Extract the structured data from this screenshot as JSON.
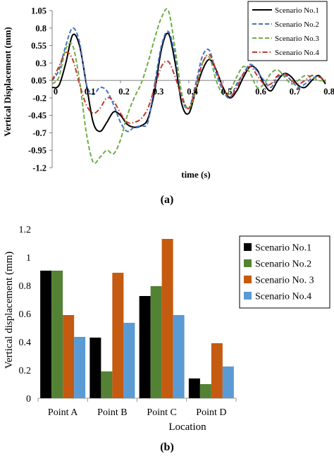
{
  "chart_data": [
    {
      "type": "line",
      "xlabel": "time (s)",
      "ylabel": "Vertical Displacement (mm)",
      "xlim": [
        0,
        0.8
      ],
      "ylim": [
        -1.2,
        1.05
      ],
      "x_ticks": [
        "0",
        "0.1",
        "0.2",
        "0.3",
        "0.4",
        "0.5",
        "0.6",
        "0.7",
        "0.8"
      ],
      "y_ticks": [
        "1.05",
        "0.8",
        "0.55",
        "0.3",
        "0.05",
        "-0.2",
        "-0.45",
        "-0.7",
        "-0.95",
        "-1.2"
      ],
      "grid": false,
      "legend_position": "top-right",
      "series": [
        {
          "name": "Scenario No.1",
          "color": "#000000",
          "dash": "solid",
          "x": [
            0,
            0.02,
            0.04,
            0.06,
            0.08,
            0.1,
            0.12,
            0.14,
            0.16,
            0.18,
            0.2,
            0.22,
            0.24,
            0.26,
            0.28,
            0.3,
            0.32,
            0.34,
            0.36,
            0.38,
            0.4,
            0.42,
            0.44,
            0.46,
            0.48,
            0.5,
            0.52,
            0.54,
            0.56,
            0.58,
            0.6,
            0.62,
            0.64,
            0.66,
            0.68,
            0.7,
            0.72,
            0.74,
            0.76,
            0.78,
            0.8
          ],
          "y": [
            -0.05,
            -0.02,
            0.3,
            0.7,
            0.55,
            0.0,
            -0.55,
            -0.68,
            -0.55,
            -0.4,
            -0.45,
            -0.58,
            -0.62,
            -0.6,
            -0.5,
            -0.1,
            0.5,
            0.72,
            0.3,
            -0.3,
            -0.42,
            -0.1,
            0.2,
            0.35,
            0.2,
            -0.05,
            -0.2,
            -0.1,
            0.1,
            0.25,
            0.2,
            0.0,
            -0.1,
            0.05,
            0.15,
            0.1,
            -0.02,
            -0.05,
            0.05,
            0.12,
            0.0
          ]
        },
        {
          "name": "Scenario No.2",
          "color": "#4472c4",
          "dash": "dashed",
          "x": [
            0,
            0.02,
            0.04,
            0.06,
            0.08,
            0.1,
            0.12,
            0.14,
            0.16,
            0.18,
            0.2,
            0.22,
            0.24,
            0.26,
            0.28,
            0.3,
            0.32,
            0.34,
            0.36,
            0.38,
            0.4,
            0.42,
            0.44,
            0.46,
            0.48,
            0.5,
            0.52,
            0.54,
            0.56,
            0.58,
            0.6,
            0.62,
            0.64,
            0.66,
            0.68,
            0.7,
            0.72,
            0.74,
            0.76,
            0.78,
            0.8
          ],
          "y": [
            0.05,
            0.2,
            0.55,
            0.8,
            0.6,
            0.0,
            -0.15,
            -0.05,
            -0.1,
            -0.3,
            -0.55,
            -0.68,
            -0.62,
            -0.6,
            -0.55,
            0.0,
            0.55,
            0.75,
            0.4,
            -0.2,
            -0.35,
            0.0,
            0.4,
            0.48,
            0.15,
            -0.1,
            -0.2,
            0.0,
            0.15,
            0.28,
            0.18,
            0.05,
            -0.05,
            0.1,
            0.12,
            0.05,
            -0.05,
            0.0,
            0.08,
            0.1,
            0.05
          ]
        },
        {
          "name": "Scenario No.3",
          "color": "#70ad47",
          "dash": "dashed",
          "x": [
            0,
            0.02,
            0.04,
            0.06,
            0.08,
            0.1,
            0.12,
            0.14,
            0.16,
            0.18,
            0.2,
            0.22,
            0.24,
            0.26,
            0.28,
            0.3,
            0.32,
            0.34,
            0.36,
            0.38,
            0.4,
            0.42,
            0.44,
            0.46,
            0.48,
            0.5,
            0.52,
            0.54,
            0.56,
            0.58,
            0.6,
            0.62,
            0.64,
            0.66,
            0.68,
            0.7,
            0.72,
            0.74,
            0.76,
            0.78,
            0.8
          ],
          "y": [
            0.0,
            0.1,
            0.5,
            0.55,
            0.05,
            -0.7,
            -1.12,
            -1.05,
            -0.95,
            -1.0,
            -0.8,
            -0.45,
            -0.2,
            0.0,
            0.3,
            0.65,
            0.95,
            1.05,
            0.5,
            -0.15,
            -0.35,
            -0.1,
            0.3,
            0.38,
            0.05,
            -0.15,
            -0.1,
            0.1,
            0.25,
            0.15,
            -0.05,
            0.0,
            0.15,
            0.2,
            0.1,
            0.0,
            0.05,
            0.12,
            0.1,
            0.05,
            0.05
          ]
        },
        {
          "name": "Scenario No.4",
          "color": "#c0392b",
          "dash": "dashdot",
          "x": [
            0,
            0.02,
            0.04,
            0.06,
            0.08,
            0.1,
            0.12,
            0.14,
            0.16,
            0.18,
            0.2,
            0.22,
            0.24,
            0.26,
            0.28,
            0.3,
            0.32,
            0.34,
            0.36,
            0.38,
            0.4,
            0.42,
            0.44,
            0.46,
            0.48,
            0.5,
            0.52,
            0.54,
            0.56,
            0.58,
            0.6,
            0.62,
            0.64,
            0.66,
            0.68,
            0.7,
            0.72,
            0.74,
            0.76,
            0.78,
            0.8
          ],
          "y": [
            0.05,
            0.25,
            0.45,
            0.35,
            0.0,
            -0.3,
            -0.42,
            -0.35,
            -0.2,
            -0.25,
            -0.42,
            -0.55,
            -0.55,
            -0.5,
            -0.35,
            -0.05,
            0.25,
            0.32,
            0.1,
            -0.2,
            -0.35,
            -0.05,
            0.3,
            0.42,
            0.2,
            -0.05,
            -0.18,
            -0.05,
            0.15,
            0.25,
            0.12,
            0.0,
            0.0,
            0.12,
            0.15,
            0.05,
            0.0,
            0.05,
            0.12,
            0.1,
            0.05
          ]
        }
      ]
    },
    {
      "type": "bar",
      "xlabel": "Location",
      "ylabel": "Vertical displacement (mm)",
      "categories": [
        "Point A",
        "Point B",
        "Point C",
        "Point D"
      ],
      "ylim": [
        0,
        1.2
      ],
      "y_ticks": [
        "0",
        "0.2",
        "0.4",
        "0.6",
        "0.8",
        "1",
        "1.2"
      ],
      "grid": false,
      "legend_position": "right",
      "series": [
        {
          "name": "Scenario No.1",
          "color": "#000000",
          "values": [
            0.905,
            0.43,
            0.725,
            0.14
          ]
        },
        {
          "name": "Scenario No.2",
          "color": "#548235",
          "values": [
            0.905,
            0.19,
            0.795,
            0.1
          ]
        },
        {
          "name": "Scenario No. 3",
          "color": "#c55a11",
          "values": [
            0.59,
            0.89,
            1.13,
            0.39
          ]
        },
        {
          "name": "Scenario No.4",
          "color": "#5b9bd5",
          "values": [
            0.435,
            0.535,
            0.59,
            0.225
          ]
        }
      ]
    }
  ],
  "captions": {
    "a": "(a)",
    "b": "(b)"
  }
}
